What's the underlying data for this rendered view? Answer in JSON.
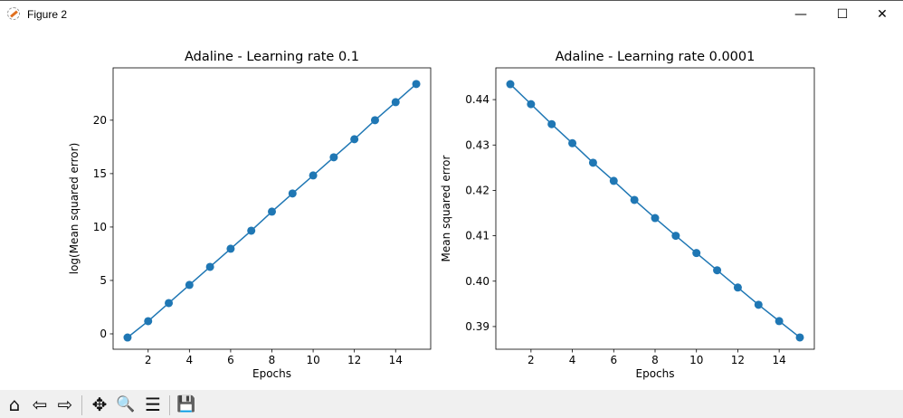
{
  "window": {
    "title": "Figure 2",
    "minimize": "—",
    "maximize": "☐",
    "close": "✕"
  },
  "toolbar": [
    {
      "name": "home-icon",
      "glyph": "⌂"
    },
    {
      "name": "back-icon",
      "glyph": "⇦"
    },
    {
      "name": "forward-icon",
      "glyph": "⇨"
    },
    {
      "name": "pan-icon",
      "glyph": "✥"
    },
    {
      "name": "zoom-icon",
      "glyph": "🔍"
    },
    {
      "name": "configure-subplots-icon",
      "glyph": "☰"
    },
    {
      "name": "save-icon",
      "glyph": "💾"
    }
  ],
  "colors": {
    "line": "#1f77b4"
  },
  "chart_data": [
    {
      "type": "line",
      "title": "Adaline - Learning rate 0.1",
      "xlabel": "Epochs",
      "ylabel": "log(Mean squared error)",
      "x": [
        1,
        2,
        3,
        4,
        5,
        6,
        7,
        8,
        9,
        10,
        11,
        12,
        13,
        14,
        15
      ],
      "y": [
        -0.34,
        1.19,
        2.88,
        4.58,
        6.27,
        7.97,
        9.66,
        11.44,
        13.14,
        14.83,
        16.53,
        18.22,
        20.0,
        21.69,
        23.39
      ],
      "xlim": [
        0.3,
        15.7
      ],
      "ylim": [
        -1.44,
        24.9
      ],
      "xticks": [
        2,
        4,
        6,
        8,
        10,
        12,
        14
      ],
      "xtick_labels": [
        "2",
        "4",
        "6",
        "8",
        "10",
        "12",
        "14"
      ],
      "yticks": [
        0,
        5,
        10,
        15,
        20
      ],
      "ytick_labels": [
        "0",
        "5",
        "10",
        "15",
        "20"
      ],
      "grid": false
    },
    {
      "type": "line",
      "title": "Adaline - Learning rate 0.0001",
      "xlabel": "Epochs",
      "ylabel": "Mean squared error",
      "x": [
        1,
        2,
        3,
        4,
        5,
        6,
        7,
        8,
        9,
        10,
        11,
        12,
        13,
        14,
        15
      ],
      "y": [
        0.4434,
        0.439,
        0.4346,
        0.4304,
        0.4261,
        0.4221,
        0.4179,
        0.4139,
        0.41,
        0.4062,
        0.4024,
        0.3986,
        0.3948,
        0.3912,
        0.3876
      ],
      "xlim": [
        0.3,
        15.7
      ],
      "ylim": [
        0.385,
        0.447
      ],
      "xticks": [
        2,
        4,
        6,
        8,
        10,
        12,
        14
      ],
      "xtick_labels": [
        "2",
        "4",
        "6",
        "8",
        "10",
        "12",
        "14"
      ],
      "yticks": [
        0.39,
        0.4,
        0.41,
        0.42,
        0.43,
        0.44
      ],
      "ytick_labels": [
        "0.39",
        "0.40",
        "0.41",
        "0.42",
        "0.43",
        "0.44"
      ],
      "grid": false
    }
  ]
}
